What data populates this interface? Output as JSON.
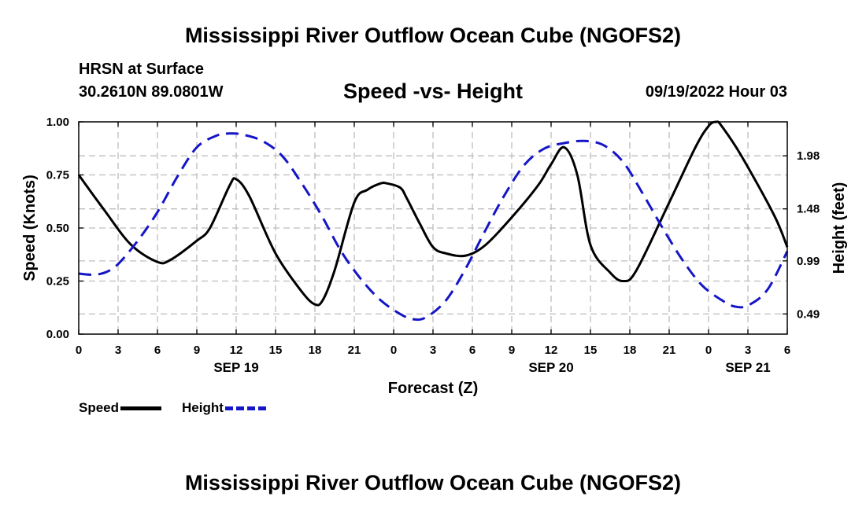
{
  "title": "Mississippi River Outflow Ocean Cube (NGOFS2)",
  "bottom_title": "Mississippi River Outflow Ocean Cube (NGOFS2)",
  "station_label": "HRSN at Surface",
  "coordinates": "30.2610N  89.0801W",
  "subtitle": "Speed -vs- Height",
  "datetime": "09/19/2022 Hour 03",
  "legend": {
    "speed_label": "Speed",
    "height_label": "Height"
  },
  "colors": {
    "speed": "#000000",
    "height": "#1515c8",
    "grid": "#bdbdbd"
  },
  "chart_data": {
    "type": "line",
    "title": "Speed -vs- Height",
    "xlabel": "Forecast (Z)",
    "ylabel": "Speed (Knots)",
    "y2label": "Height (feet)",
    "xlim": [
      0,
      54
    ],
    "ylim": [
      0,
      1.0
    ],
    "y2lim": [
      0.3,
      2.3
    ],
    "x_ticks": [
      0,
      3,
      6,
      9,
      12,
      15,
      18,
      21,
      24,
      27,
      30,
      33,
      36,
      39,
      42,
      45,
      48,
      51,
      54
    ],
    "x_tick_labels": [
      "0",
      "3",
      "6",
      "9",
      "12",
      "15",
      "18",
      "21",
      "0",
      "3",
      "6",
      "9",
      "12",
      "15",
      "18",
      "21",
      "0",
      "3",
      "6"
    ],
    "date_labels": [
      {
        "x": 12,
        "label": "SEP 19"
      },
      {
        "x": 36,
        "label": "SEP 20"
      },
      {
        "x": 51,
        "label": "SEP 21"
      }
    ],
    "y_ticks": [
      0.0,
      0.25,
      0.5,
      0.75,
      1.0
    ],
    "y_tick_labels": [
      "0.00",
      "0.25",
      "0.50",
      "0.75",
      "1.00"
    ],
    "y2_ticks": [
      0.49,
      0.99,
      1.48,
      1.98
    ],
    "y2_tick_labels": [
      "0.49",
      "0.99",
      "1.48",
      "1.98"
    ],
    "grid": true,
    "series": [
      {
        "name": "Speed",
        "axis": "left",
        "style": "solid",
        "x": [
          0,
          2,
          4,
          6,
          7,
          9,
          10,
          11.5,
          12,
          13,
          15,
          17,
          18,
          18.6,
          19.5,
          21,
          22,
          23,
          23.5,
          24.5,
          25,
          26,
          27,
          28,
          29.5,
          31,
          33,
          35,
          36,
          37,
          38,
          39,
          40.5,
          41.5,
          42.5,
          45,
          47,
          48,
          48.6,
          49,
          50.5,
          53,
          54
        ],
        "values": [
          0.75,
          0.58,
          0.42,
          0.34,
          0.35,
          0.44,
          0.5,
          0.7,
          0.73,
          0.65,
          0.38,
          0.2,
          0.14,
          0.16,
          0.3,
          0.62,
          0.68,
          0.71,
          0.71,
          0.69,
          0.64,
          0.52,
          0.41,
          0.38,
          0.37,
          0.42,
          0.55,
          0.7,
          0.8,
          0.88,
          0.75,
          0.42,
          0.29,
          0.25,
          0.3,
          0.62,
          0.88,
          0.98,
          1.0,
          0.98,
          0.84,
          0.56,
          0.41
        ]
      },
      {
        "name": "Height",
        "axis": "right",
        "style": "dashed",
        "x": [
          0,
          1,
          2,
          3,
          4.5,
          6,
          7.5,
          9,
          10.5,
          11.5,
          12.5,
          14,
          15.5,
          17,
          18.5,
          20,
          21.5,
          23,
          24.5,
          25.5,
          26.5,
          28,
          29.5,
          31,
          32.5,
          34,
          35.5,
          37,
          38.5,
          40,
          41.5,
          43,
          44.5,
          46,
          47.5,
          49,
          50,
          51,
          52.5,
          54
        ],
        "values": [
          0.87,
          0.86,
          0.88,
          0.96,
          1.18,
          1.45,
          1.78,
          2.06,
          2.17,
          2.19,
          2.18,
          2.12,
          1.98,
          1.72,
          1.42,
          1.08,
          0.82,
          0.62,
          0.49,
          0.44,
          0.46,
          0.62,
          0.92,
          1.28,
          1.62,
          1.9,
          2.05,
          2.1,
          2.12,
          2.08,
          1.92,
          1.62,
          1.3,
          1.0,
          0.76,
          0.62,
          0.56,
          0.57,
          0.72,
          1.08
        ]
      }
    ]
  }
}
